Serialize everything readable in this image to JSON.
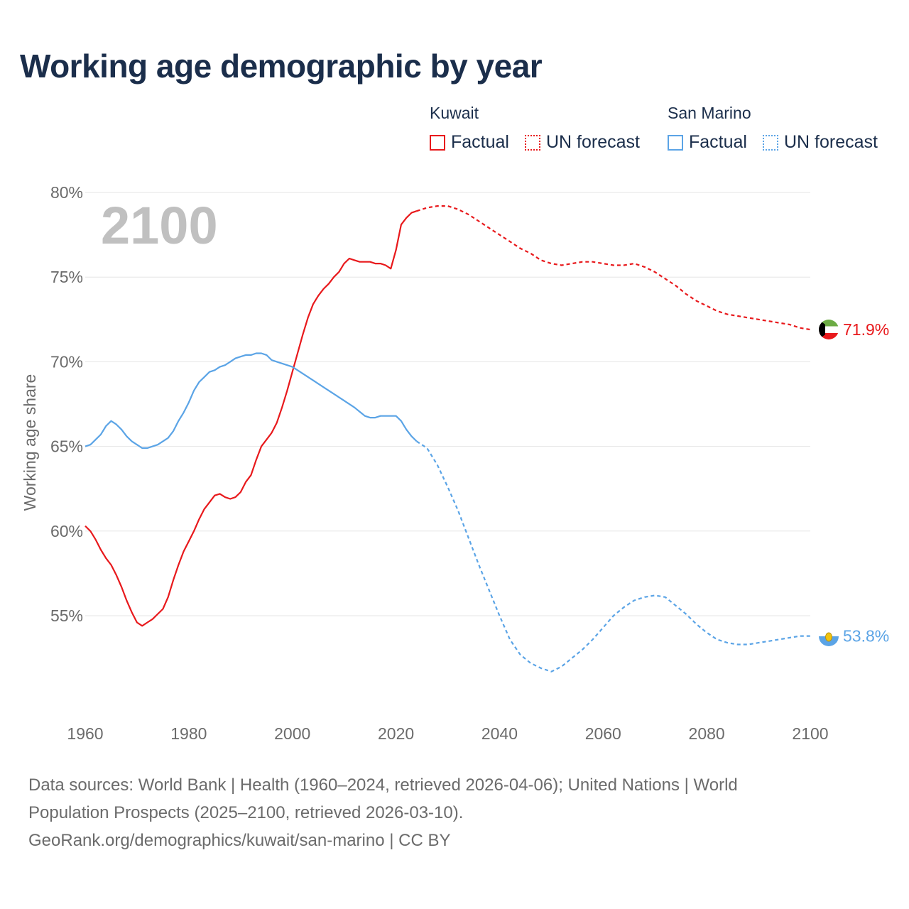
{
  "title": "Working age demographic by year",
  "legend": {
    "groups": [
      {
        "name": "Kuwait",
        "factual_label": "Factual",
        "forecast_label": "UN forecast",
        "color": "#e8191c"
      },
      {
        "name": "San Marino",
        "factual_label": "Factual",
        "forecast_label": "UN forecast",
        "color": "#5ba4e6"
      }
    ]
  },
  "footer": {
    "line1": "Data sources: World Bank | Health (1960–2024, retrieved 2026-04-06); United Nations | World",
    "line2": "Population Prospects (2025–2100, retrieved 2026-03-10).",
    "line3": "GeoRank.org/demographics/kuwait/san-marino | CC BY"
  },
  "chart_data": {
    "type": "line",
    "title": "Working age demographic by year",
    "year_badge": "2100",
    "xlabel": "",
    "ylabel": "Working age share",
    "xlim": [
      1960,
      2100
    ],
    "ylim": [
      49,
      80
    ],
    "x_ticks": [
      1960,
      1980,
      2000,
      2020,
      2040,
      2060,
      2080,
      2100
    ],
    "y_ticks": [
      {
        "value": 55,
        "label": "55%"
      },
      {
        "value": 60,
        "label": "60%"
      },
      {
        "value": 65,
        "label": "65%"
      },
      {
        "value": 70,
        "label": "70%"
      },
      {
        "value": 75,
        "label": "75%"
      },
      {
        "value": 80,
        "label": "80%"
      }
    ],
    "grid": true,
    "series": [
      {
        "name": "Kuwait",
        "color": "#e8191c",
        "factual_end": 2024,
        "end_label": "71.9%",
        "flag": "kuwait",
        "points": [
          [
            1960,
            60.3
          ],
          [
            1961,
            60.0
          ],
          [
            1962,
            59.5
          ],
          [
            1963,
            58.9
          ],
          [
            1964,
            58.4
          ],
          [
            1965,
            58.0
          ],
          [
            1966,
            57.4
          ],
          [
            1967,
            56.7
          ],
          [
            1968,
            55.9
          ],
          [
            1969,
            55.2
          ],
          [
            1970,
            54.6
          ],
          [
            1971,
            54.4
          ],
          [
            1972,
            54.6
          ],
          [
            1973,
            54.8
          ],
          [
            1974,
            55.1
          ],
          [
            1975,
            55.4
          ],
          [
            1976,
            56.1
          ],
          [
            1977,
            57.1
          ],
          [
            1978,
            58.0
          ],
          [
            1979,
            58.8
          ],
          [
            1980,
            59.4
          ],
          [
            1981,
            60.0
          ],
          [
            1982,
            60.7
          ],
          [
            1983,
            61.3
          ],
          [
            1984,
            61.7
          ],
          [
            1985,
            62.1
          ],
          [
            1986,
            62.2
          ],
          [
            1987,
            62.0
          ],
          [
            1988,
            61.9
          ],
          [
            1989,
            62.0
          ],
          [
            1990,
            62.3
          ],
          [
            1991,
            62.9
          ],
          [
            1992,
            63.3
          ],
          [
            1993,
            64.2
          ],
          [
            1994,
            65.0
          ],
          [
            1995,
            65.4
          ],
          [
            1996,
            65.8
          ],
          [
            1997,
            66.4
          ],
          [
            1998,
            67.3
          ],
          [
            1999,
            68.3
          ],
          [
            2000,
            69.4
          ],
          [
            2001,
            70.5
          ],
          [
            2002,
            71.6
          ],
          [
            2003,
            72.6
          ],
          [
            2004,
            73.4
          ],
          [
            2005,
            73.9
          ],
          [
            2006,
            74.3
          ],
          [
            2007,
            74.6
          ],
          [
            2008,
            75.0
          ],
          [
            2009,
            75.3
          ],
          [
            2010,
            75.8
          ],
          [
            2011,
            76.1
          ],
          [
            2012,
            76.0
          ],
          [
            2013,
            75.9
          ],
          [
            2014,
            75.9
          ],
          [
            2015,
            75.9
          ],
          [
            2016,
            75.8
          ],
          [
            2017,
            75.8
          ],
          [
            2018,
            75.7
          ],
          [
            2019,
            75.5
          ],
          [
            2020,
            76.6
          ],
          [
            2021,
            78.1
          ],
          [
            2022,
            78.5
          ],
          [
            2023,
            78.8
          ],
          [
            2024,
            78.9
          ],
          [
            2026,
            79.1
          ],
          [
            2028,
            79.2
          ],
          [
            2030,
            79.2
          ],
          [
            2032,
            79.0
          ],
          [
            2034,
            78.7
          ],
          [
            2036,
            78.3
          ],
          [
            2038,
            77.9
          ],
          [
            2040,
            77.5
          ],
          [
            2042,
            77.1
          ],
          [
            2044,
            76.7
          ],
          [
            2046,
            76.4
          ],
          [
            2048,
            76.0
          ],
          [
            2050,
            75.8
          ],
          [
            2052,
            75.7
          ],
          [
            2054,
            75.8
          ],
          [
            2056,
            75.9
          ],
          [
            2058,
            75.9
          ],
          [
            2060,
            75.8
          ],
          [
            2062,
            75.7
          ],
          [
            2064,
            75.7
          ],
          [
            2066,
            75.8
          ],
          [
            2068,
            75.6
          ],
          [
            2070,
            75.3
          ],
          [
            2072,
            74.9
          ],
          [
            2074,
            74.5
          ],
          [
            2076,
            74.0
          ],
          [
            2078,
            73.6
          ],
          [
            2080,
            73.3
          ],
          [
            2082,
            73.0
          ],
          [
            2084,
            72.8
          ],
          [
            2086,
            72.7
          ],
          [
            2088,
            72.6
          ],
          [
            2090,
            72.5
          ],
          [
            2092,
            72.4
          ],
          [
            2094,
            72.3
          ],
          [
            2096,
            72.2
          ],
          [
            2098,
            72.0
          ],
          [
            2100,
            71.9
          ]
        ]
      },
      {
        "name": "San Marino",
        "color": "#5ba4e6",
        "factual_end": 2024,
        "end_label": "53.8%",
        "flag": "san-marino",
        "points": [
          [
            1960,
            65.0
          ],
          [
            1961,
            65.1
          ],
          [
            1962,
            65.4
          ],
          [
            1963,
            65.7
          ],
          [
            1964,
            66.2
          ],
          [
            1965,
            66.5
          ],
          [
            1966,
            66.3
          ],
          [
            1967,
            66.0
          ],
          [
            1968,
            65.6
          ],
          [
            1969,
            65.3
          ],
          [
            1970,
            65.1
          ],
          [
            1971,
            64.9
          ],
          [
            1972,
            64.9
          ],
          [
            1973,
            65.0
          ],
          [
            1974,
            65.1
          ],
          [
            1975,
            65.3
          ],
          [
            1976,
            65.5
          ],
          [
            1977,
            65.9
          ],
          [
            1978,
            66.5
          ],
          [
            1979,
            67.0
          ],
          [
            1980,
            67.6
          ],
          [
            1981,
            68.3
          ],
          [
            1982,
            68.8
          ],
          [
            1983,
            69.1
          ],
          [
            1984,
            69.4
          ],
          [
            1985,
            69.5
          ],
          [
            1986,
            69.7
          ],
          [
            1987,
            69.8
          ],
          [
            1988,
            70.0
          ],
          [
            1989,
            70.2
          ],
          [
            1990,
            70.3
          ],
          [
            1991,
            70.4
          ],
          [
            1992,
            70.4
          ],
          [
            1993,
            70.5
          ],
          [
            1994,
            70.5
          ],
          [
            1995,
            70.4
          ],
          [
            1996,
            70.1
          ],
          [
            1997,
            70.0
          ],
          [
            1998,
            69.9
          ],
          [
            1999,
            69.8
          ],
          [
            2000,
            69.7
          ],
          [
            2002,
            69.3
          ],
          [
            2004,
            68.9
          ],
          [
            2006,
            68.5
          ],
          [
            2008,
            68.1
          ],
          [
            2010,
            67.7
          ],
          [
            2012,
            67.3
          ],
          [
            2014,
            66.8
          ],
          [
            2015,
            66.7
          ],
          [
            2016,
            66.7
          ],
          [
            2017,
            66.8
          ],
          [
            2018,
            66.8
          ],
          [
            2019,
            66.8
          ],
          [
            2020,
            66.8
          ],
          [
            2021,
            66.5
          ],
          [
            2022,
            66.0
          ],
          [
            2023,
            65.6
          ],
          [
            2024,
            65.3
          ],
          [
            2026,
            64.9
          ],
          [
            2028,
            63.9
          ],
          [
            2030,
            62.6
          ],
          [
            2032,
            61.2
          ],
          [
            2034,
            59.6
          ],
          [
            2036,
            58.0
          ],
          [
            2038,
            56.5
          ],
          [
            2040,
            55.0
          ],
          [
            2042,
            53.6
          ],
          [
            2044,
            52.7
          ],
          [
            2046,
            52.2
          ],
          [
            2048,
            51.9
          ],
          [
            2050,
            51.7
          ],
          [
            2052,
            52.0
          ],
          [
            2054,
            52.5
          ],
          [
            2056,
            53.0
          ],
          [
            2058,
            53.6
          ],
          [
            2060,
            54.3
          ],
          [
            2062,
            55.0
          ],
          [
            2064,
            55.5
          ],
          [
            2066,
            55.9
          ],
          [
            2068,
            56.1
          ],
          [
            2070,
            56.2
          ],
          [
            2072,
            56.1
          ],
          [
            2074,
            55.6
          ],
          [
            2076,
            55.1
          ],
          [
            2078,
            54.5
          ],
          [
            2080,
            54.0
          ],
          [
            2082,
            53.6
          ],
          [
            2084,
            53.4
          ],
          [
            2086,
            53.3
          ],
          [
            2088,
            53.3
          ],
          [
            2090,
            53.4
          ],
          [
            2092,
            53.5
          ],
          [
            2094,
            53.6
          ],
          [
            2096,
            53.7
          ],
          [
            2098,
            53.8
          ],
          [
            2100,
            53.8
          ]
        ]
      }
    ]
  }
}
